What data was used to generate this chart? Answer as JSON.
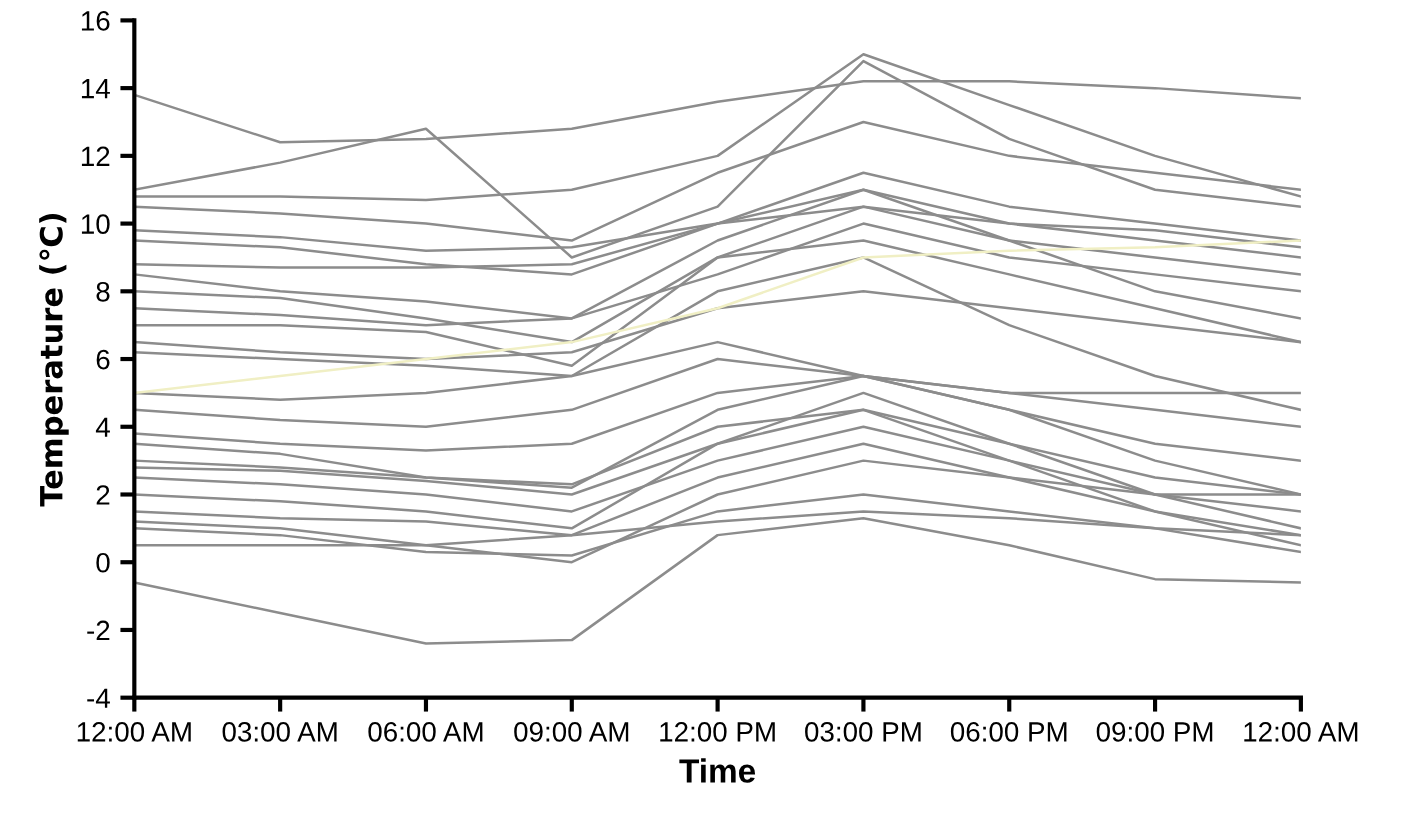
{
  "chart_data": {
    "type": "line",
    "xlabel": "Time",
    "ylabel": "Temperature (℃)",
    "x": [
      0,
      3,
      6,
      9,
      12,
      15,
      18,
      21,
      24
    ],
    "xlim": [
      0,
      24
    ],
    "xticks": [
      {
        "value": 0,
        "label": "12:00 AM"
      },
      {
        "value": 3,
        "label": "03:00 AM"
      },
      {
        "value": 6,
        "label": "06:00 AM"
      },
      {
        "value": 9,
        "label": "09:00 AM"
      },
      {
        "value": 12,
        "label": "12:00 PM"
      },
      {
        "value": 15,
        "label": "03:00 PM"
      },
      {
        "value": 18,
        "label": "06:00 PM"
      },
      {
        "value": 21,
        "label": "09:00 PM"
      },
      {
        "value": 24,
        "label": "12:00 AM"
      }
    ],
    "ylim": [
      -4,
      16
    ],
    "yticks": [
      -4,
      -2,
      0,
      2,
      4,
      6,
      8,
      10,
      12,
      14,
      16
    ],
    "grid": false,
    "marker": "none",
    "line_style": "solid",
    "series": [
      {
        "color": "#8c8c8c",
        "values": [
          13.8,
          12.4,
          12.5,
          12.8,
          13.6,
          14.2,
          14.2,
          14.0,
          13.7
        ]
      },
      {
        "color": "#8c8c8c",
        "values": [
          11.0,
          11.8,
          12.8,
          9.0,
          10.5,
          14.8,
          12.5,
          11.0,
          10.5
        ]
      },
      {
        "color": "#8c8c8c",
        "values": [
          10.8,
          10.8,
          10.7,
          11.0,
          12.0,
          15.0,
          13.5,
          12.0,
          10.8
        ]
      },
      {
        "color": "#8c8c8c",
        "values": [
          10.5,
          10.3,
          10.0,
          9.5,
          11.5,
          13.0,
          12.0,
          11.5,
          11.0
        ]
      },
      {
        "color": "#8c8c8c",
        "values": [
          9.8,
          9.6,
          9.2,
          9.3,
          10.0,
          11.5,
          10.5,
          10.0,
          9.5
        ]
      },
      {
        "color": "#8c8c8c",
        "values": [
          9.5,
          9.3,
          8.8,
          8.5,
          10.0,
          11.0,
          10.0,
          9.5,
          9.0
        ]
      },
      {
        "color": "#8c8c8c",
        "values": [
          8.8,
          8.7,
          8.7,
          8.8,
          10.0,
          10.5,
          10.0,
          9.8,
          9.3
        ]
      },
      {
        "color": "#8c8c8c",
        "values": [
          8.5,
          8.0,
          7.7,
          7.2,
          9.5,
          11.0,
          9.5,
          9.0,
          8.5
        ]
      },
      {
        "color": "#8c8c8c",
        "values": [
          8.0,
          7.8,
          7.2,
          6.5,
          9.0,
          10.5,
          9.5,
          8.0,
          7.2
        ]
      },
      {
        "color": "#8c8c8c",
        "values": [
          7.5,
          7.3,
          7.0,
          7.2,
          8.5,
          10.0,
          9.0,
          8.5,
          8.0
        ]
      },
      {
        "color": "#8c8c8c",
        "values": [
          7.0,
          7.0,
          6.8,
          5.8,
          9.0,
          9.5,
          8.5,
          7.5,
          6.5
        ]
      },
      {
        "color": "#8c8c8c",
        "values": [
          6.5,
          6.2,
          6.0,
          6.2,
          7.5,
          8.0,
          7.5,
          7.0,
          6.5
        ]
      },
      {
        "color": "#8c8c8c",
        "values": [
          6.2,
          6.0,
          5.8,
          5.5,
          8.0,
          9.0,
          7.0,
          5.5,
          4.5
        ]
      },
      {
        "color": "#8c8c8c",
        "values": [
          5.0,
          4.8,
          5.0,
          5.5,
          6.5,
          5.5,
          5.0,
          5.0,
          5.0
        ]
      },
      {
        "color": "#8c8c8c",
        "values": [
          4.5,
          4.2,
          4.0,
          4.5,
          6.0,
          5.5,
          5.0,
          4.5,
          4.0
        ]
      },
      {
        "color": "#8c8c8c",
        "values": [
          3.8,
          3.5,
          3.3,
          3.5,
          5.0,
          5.5,
          4.5,
          3.5,
          3.0
        ]
      },
      {
        "color": "#8c8c8c",
        "values": [
          3.5,
          3.2,
          2.5,
          2.2,
          4.5,
          5.5,
          4.5,
          3.0,
          2.0
        ]
      },
      {
        "color": "#8c8c8c",
        "values": [
          3.0,
          2.8,
          2.5,
          2.3,
          4.0,
          4.5,
          3.5,
          2.5,
          2.0
        ]
      },
      {
        "color": "#8c8c8c",
        "values": [
          2.8,
          2.7,
          2.4,
          2.0,
          3.5,
          5.0,
          3.5,
          2.0,
          1.5
        ]
      },
      {
        "color": "#8c8c8c",
        "values": [
          2.5,
          2.3,
          2.0,
          1.5,
          3.0,
          4.0,
          3.0,
          2.0,
          1.0
        ]
      },
      {
        "color": "#8c8c8c",
        "values": [
          2.0,
          1.8,
          1.5,
          1.0,
          3.5,
          4.5,
          3.0,
          1.5,
          0.8
        ]
      },
      {
        "color": "#8c8c8c",
        "values": [
          1.5,
          1.3,
          1.2,
          0.8,
          2.5,
          3.5,
          2.5,
          1.5,
          0.5
        ]
      },
      {
        "color": "#8c8c8c",
        "values": [
          1.2,
          1.0,
          0.5,
          0.0,
          2.0,
          3.0,
          2.5,
          2.0,
          2.0
        ]
      },
      {
        "color": "#8c8c8c",
        "values": [
          1.0,
          0.8,
          0.3,
          0.2,
          1.5,
          2.0,
          1.5,
          1.0,
          0.3
        ]
      },
      {
        "color": "#8c8c8c",
        "values": [
          0.5,
          0.5,
          0.5,
          0.8,
          1.2,
          1.5,
          1.3,
          1.0,
          0.8
        ]
      },
      {
        "color": "#8c8c8c",
        "values": [
          -0.6,
          -1.5,
          -2.4,
          -2.3,
          0.8,
          1.3,
          0.5,
          -0.5,
          -0.6
        ]
      },
      {
        "color": "#f0efc4",
        "values": [
          5.0,
          5.5,
          6.0,
          6.5,
          7.5,
          9.0,
          9.2,
          9.3,
          9.5
        ]
      }
    ]
  }
}
